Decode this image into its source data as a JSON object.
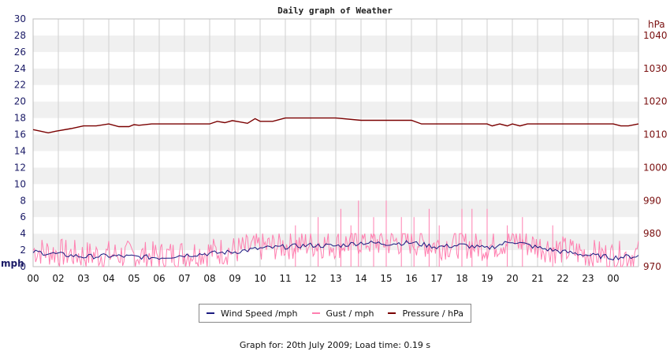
{
  "chart_data": {
    "type": "line",
    "title": "Daily graph of Weather",
    "x_ticks": [
      "00",
      "02",
      "03",
      "04",
      "05",
      "06",
      "07",
      "08",
      "09",
      "10",
      "11",
      "12",
      "13",
      "14",
      "15",
      "16",
      "17",
      "18",
      "19",
      "20",
      "21",
      "22",
      "23",
      "00"
    ],
    "y_left": {
      "unit": "mph",
      "range": [
        0,
        30
      ],
      "ticks": [
        "0",
        "2",
        "4",
        "6",
        "8",
        "10",
        "12",
        "14",
        "16",
        "18",
        "20",
        "22",
        "24",
        "26",
        "28",
        "30"
      ]
    },
    "y_right": {
      "unit": "hPa",
      "range": [
        970,
        1045
      ],
      "ticks": [
        "970",
        "980",
        "990",
        "1000",
        "1010",
        "1020",
        "1030",
        "1040"
      ]
    },
    "grid": true,
    "legend_position": "bottom",
    "series": [
      {
        "name": "Wind Speed /mph",
        "axis": "left",
        "color": "#1a1a80",
        "hours": [
          0,
          1,
          2,
          3,
          4,
          5,
          6,
          7,
          8,
          9,
          10,
          11,
          12,
          13,
          14,
          15,
          16,
          17,
          18,
          19,
          20,
          21,
          22,
          23,
          24
        ],
        "values": [
          1.8,
          1.5,
          1.2,
          1.3,
          1.2,
          1.1,
          1.4,
          1.6,
          1.8,
          2.2,
          2.4,
          2.6,
          2.5,
          2.9,
          2.8,
          2.9,
          2.4,
          2.6,
          2.2,
          3.1,
          2.3,
          1.8,
          1.4,
          1.1,
          1.3
        ]
      },
      {
        "name": "Gust / mph",
        "axis": "left",
        "color": "#ff7fb0",
        "peaks": [
          [
            12.9,
            8
          ],
          [
            14.0,
            8
          ],
          [
            12.2,
            7
          ],
          [
            15.7,
            7
          ],
          [
            17.0,
            7
          ],
          [
            17.4,
            7
          ],
          [
            18.0,
            7
          ],
          [
            13.5,
            6
          ],
          [
            14.6,
            6
          ],
          [
            15.1,
            6
          ],
          [
            19.4,
            6
          ],
          [
            11.3,
            6
          ],
          [
            10.4,
            5
          ],
          [
            12.6,
            5
          ],
          [
            16.1,
            5
          ],
          [
            18.8,
            5
          ],
          [
            20.6,
            5
          ]
        ],
        "typical_range": [
          0,
          4
        ]
      },
      {
        "name": "Pressure / hPa",
        "axis": "right",
        "color": "#7a0000",
        "hours": [
          0,
          0.3,
          0.6,
          0.9,
          1.5,
          2.0,
          2.5,
          3.0,
          3.4,
          3.8,
          4.0,
          4.2,
          4.7,
          5.0,
          6.0,
          7.0,
          7.3,
          7.6,
          7.9,
          8.2,
          8.5,
          8.8,
          9.0,
          9.5,
          10.0,
          11.0,
          12.0,
          13.0,
          14.0,
          15.0,
          15.4,
          16.0,
          17.0,
          17.5,
          18.0,
          18.2,
          18.5,
          18.8,
          19.0,
          19.3,
          19.6,
          20.0,
          21.0,
          22.0,
          22.5,
          23.0,
          23.3,
          23.6,
          24.0
        ],
        "values": [
          1011.5,
          1011.0,
          1010.5,
          1011.0,
          1011.8,
          1012.6,
          1012.6,
          1013.2,
          1012.4,
          1012.4,
          1013.0,
          1012.8,
          1013.2,
          1013.2,
          1013.2,
          1013.2,
          1014.0,
          1013.6,
          1014.2,
          1013.8,
          1013.4,
          1014.8,
          1014.0,
          1014.0,
          1015.0,
          1015.0,
          1015.0,
          1014.3,
          1014.3,
          1014.3,
          1013.2,
          1013.2,
          1013.2,
          1013.2,
          1013.2,
          1012.6,
          1013.2,
          1012.6,
          1013.2,
          1012.6,
          1013.2,
          1013.2,
          1013.2,
          1013.2,
          1013.2,
          1013.2,
          1012.6,
          1012.6,
          1013.2
        ]
      }
    ]
  },
  "legend": {
    "wind": "Wind Speed /mph",
    "gust": "Gust / mph",
    "pressure": "Pressure / hPa"
  },
  "footer": "Graph for: 20th July 2009; Load time: 0.19 s"
}
